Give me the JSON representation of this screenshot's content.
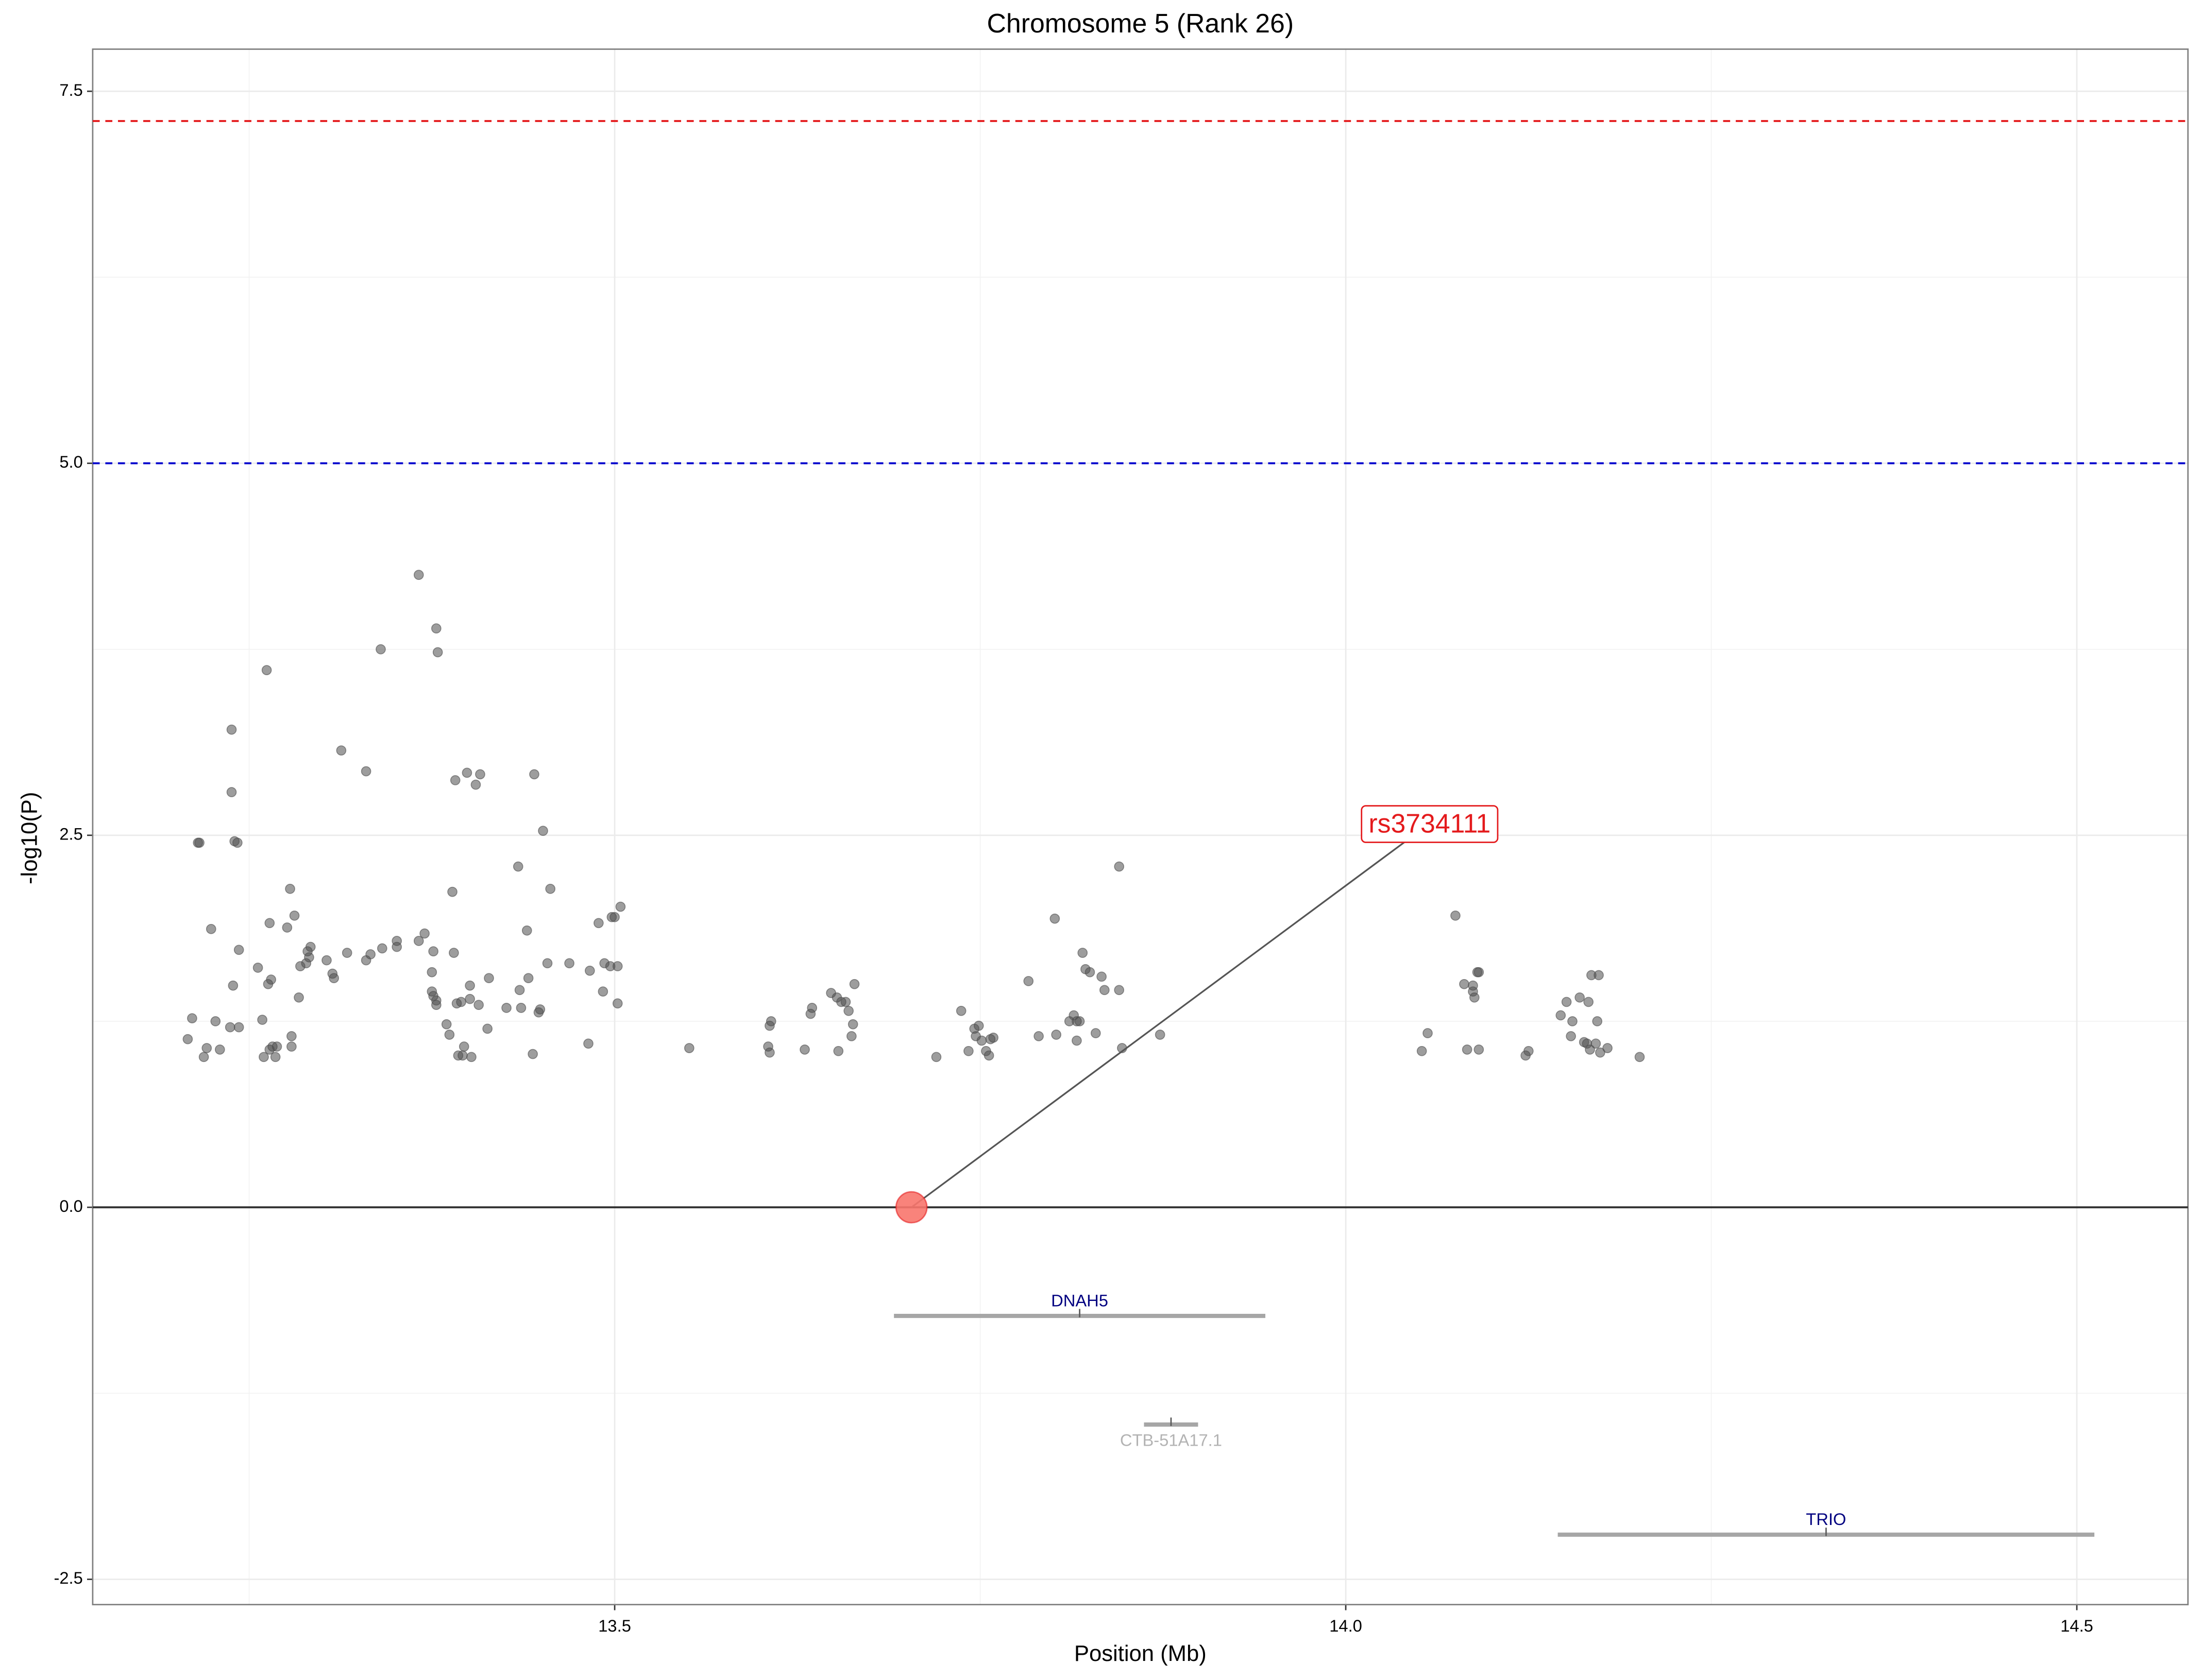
{
  "chart_data": {
    "type": "scatter",
    "title": "Chromosome 5 (Rank 26)",
    "x_label": "Position (Mb)",
    "y_label": "-log10(P)",
    "xlim": [
      13.143,
      14.576
    ],
    "ylim": [
      -2.67,
      7.783
    ],
    "xticks": [
      13.5,
      {
        "value": 14,
        "label": "14.0"
      },
      14.5
    ],
    "yticks": [
      -2.5,
      {
        "value": 0,
        "label": "0.0"
      },
      2.5,
      {
        "value": 5,
        "label": "5.0"
      },
      7.5
    ],
    "x_minor_grid": [
      13.25,
      13.75,
      14.25
    ],
    "y_minor_grid": [
      -1.25,
      1.25,
      3.75,
      6.25
    ],
    "grid": true,
    "color": "#4d4d4d",
    "x": [
      13.208,
      13.211,
      13.215,
      13.216,
      13.219,
      13.221,
      13.224,
      13.227,
      13.23,
      13.237,
      13.238,
      13.238,
      13.239,
      13.24,
      13.242,
      13.243,
      13.243,
      13.256,
      13.259,
      13.26,
      13.262,
      13.263,
      13.264,
      13.264,
      13.265,
      13.266,
      13.268,
      13.269,
      13.276,
      13.278,
      13.279,
      13.279,
      13.281,
      13.284,
      13.285,
      13.289,
      13.29,
      13.291,
      13.292,
      13.303,
      13.307,
      13.308,
      13.313,
      13.317,
      13.33,
      13.33,
      13.333,
      13.34,
      13.341,
      13.351,
      13.351,
      13.366,
      13.366,
      13.37,
      13.375,
      13.375,
      13.376,
      13.376,
      13.378,
      13.378,
      13.378,
      13.379,
      13.385,
      13.387,
      13.389,
      13.39,
      13.391,
      13.392,
      13.393,
      13.395,
      13.396,
      13.397,
      13.399,
      13.401,
      13.401,
      13.402,
      13.405,
      13.407,
      13.408,
      13.413,
      13.414,
      13.426,
      13.434,
      13.435,
      13.436,
      13.44,
      13.441,
      13.444,
      13.445,
      13.448,
      13.449,
      13.451,
      13.454,
      13.456,
      13.469,
      13.482,
      13.483,
      13.489,
      13.492,
      13.493,
      13.497,
      13.498,
      13.5,
      13.502,
      13.502,
      13.504,
      13.551,
      13.605,
      13.606,
      13.606,
      13.607,
      13.63,
      13.634,
      13.635,
      13.648,
      13.652,
      13.653,
      13.655,
      13.658,
      13.66,
      13.662,
      13.663,
      13.664,
      13.72,
      13.737,
      13.742,
      13.746,
      13.747,
      13.749,
      13.751,
      13.754,
      13.756,
      13.757,
      13.759,
      13.783,
      13.79,
      13.801,
      13.802,
      13.811,
      13.814,
      13.816,
      13.816,
      13.818,
      13.82,
      13.822,
      13.825,
      13.829,
      13.833,
      13.835,
      13.845,
      13.845,
      13.847,
      13.873,
      14.052,
      14.056,
      14.075,
      14.081,
      14.083,
      14.087,
      14.087,
      14.088,
      14.09,
      14.091,
      14.091,
      14.123,
      14.125,
      14.147,
      14.151,
      14.154,
      14.155,
      14.16,
      14.163,
      14.165,
      14.166,
      14.167,
      14.168,
      14.171,
      14.172,
      14.173,
      14.174,
      14.179,
      14.201
    ],
    "y": [
      1.13,
      1.27,
      2.45,
      2.45,
      1.01,
      1.07,
      1.87,
      1.25,
      1.06,
      1.21,
      3.21,
      2.79,
      1.49,
      2.46,
      2.45,
      1.21,
      1.73,
      1.61,
      1.26,
      1.01,
      3.61,
      1.5,
      1.91,
      1.06,
      1.53,
      1.08,
      1.01,
      1.08,
      1.88,
      2.14,
      1.08,
      1.15,
      1.96,
      1.41,
      1.62,
      1.64,
      1.72,
      1.68,
      1.75,
      1.66,
      1.57,
      1.54,
      3.07,
      1.71,
      2.93,
      1.66,
      1.7,
      3.75,
      1.74,
      1.75,
      1.79,
      1.79,
      4.25,
      1.84,
      1.58,
      1.45,
      1.72,
      1.42,
      1.39,
      1.36,
      3.89,
      3.73,
      1.23,
      1.16,
      2.12,
      1.71,
      2.87,
      1.37,
      1.02,
      1.38,
      1.02,
      1.08,
      2.92,
      1.4,
      1.49,
      1.01,
      2.84,
      1.36,
      2.91,
      1.2,
      1.54,
      1.34,
      2.29,
      1.46,
      1.34,
      1.86,
      1.54,
      1.03,
      2.91,
      1.31,
      1.33,
      2.53,
      1.64,
      2.14,
      1.64,
      1.1,
      1.59,
      1.91,
      1.45,
      1.64,
      1.62,
      1.95,
      1.95,
      1.37,
      1.62,
      2.02,
      1.07,
      1.08,
      1.22,
      1.04,
      1.25,
      1.06,
      1.3,
      1.34,
      1.44,
      1.41,
      1.05,
      1.38,
      1.38,
      1.32,
      1.15,
      1.23,
      1.5,
      1.01,
      1.32,
      1.05,
      1.2,
      1.15,
      1.22,
      1.12,
      1.05,
      1.02,
      1.13,
      1.14,
      1.52,
      1.15,
      1.94,
      1.16,
      1.25,
      1.29,
      1.25,
      1.12,
      1.25,
      1.71,
      1.6,
      1.58,
      1.17,
      1.55,
      1.46,
      1.46,
      2.29,
      1.07,
      1.16,
      1.05,
      1.17,
      1.96,
      1.5,
      1.06,
      1.45,
      1.49,
      1.41,
      1.58,
      1.58,
      1.06,
      1.02,
      1.05,
      1.29,
      1.38,
      1.15,
      1.25,
      1.41,
      1.11,
      1.1,
      1.38,
      1.06,
      1.56,
      1.1,
      1.25,
      1.56,
      1.04,
      1.07,
      1.01
    ],
    "hlines": [
      {
        "value": 7.3,
        "color": "#e41a1c",
        "dashed": true
      },
      {
        "value": 5,
        "color": "#0000cc",
        "dashed": true
      },
      {
        "value": 0,
        "color": "#333333",
        "dashed": false
      }
    ],
    "highlight": {
      "x": 13.703,
      "y": 0,
      "label": "rs3734111",
      "color": "#f8766d",
      "label_color": "#e41a1c"
    },
    "genes": [
      {
        "name": "DNAH5",
        "start": 13.691,
        "end": 13.945,
        "y": -0.73,
        "color": "#000080",
        "label_side": "above"
      },
      {
        "name": "CTB-51A17.1",
        "start": 13.862,
        "end": 13.899,
        "y": -1.46,
        "color": "#b3b3b3",
        "label_side": "below"
      },
      {
        "name": "TRIO",
        "start": 14.145,
        "end": 14.512,
        "y": -2.2,
        "color": "#000080",
        "label_side": "above"
      }
    ]
  }
}
